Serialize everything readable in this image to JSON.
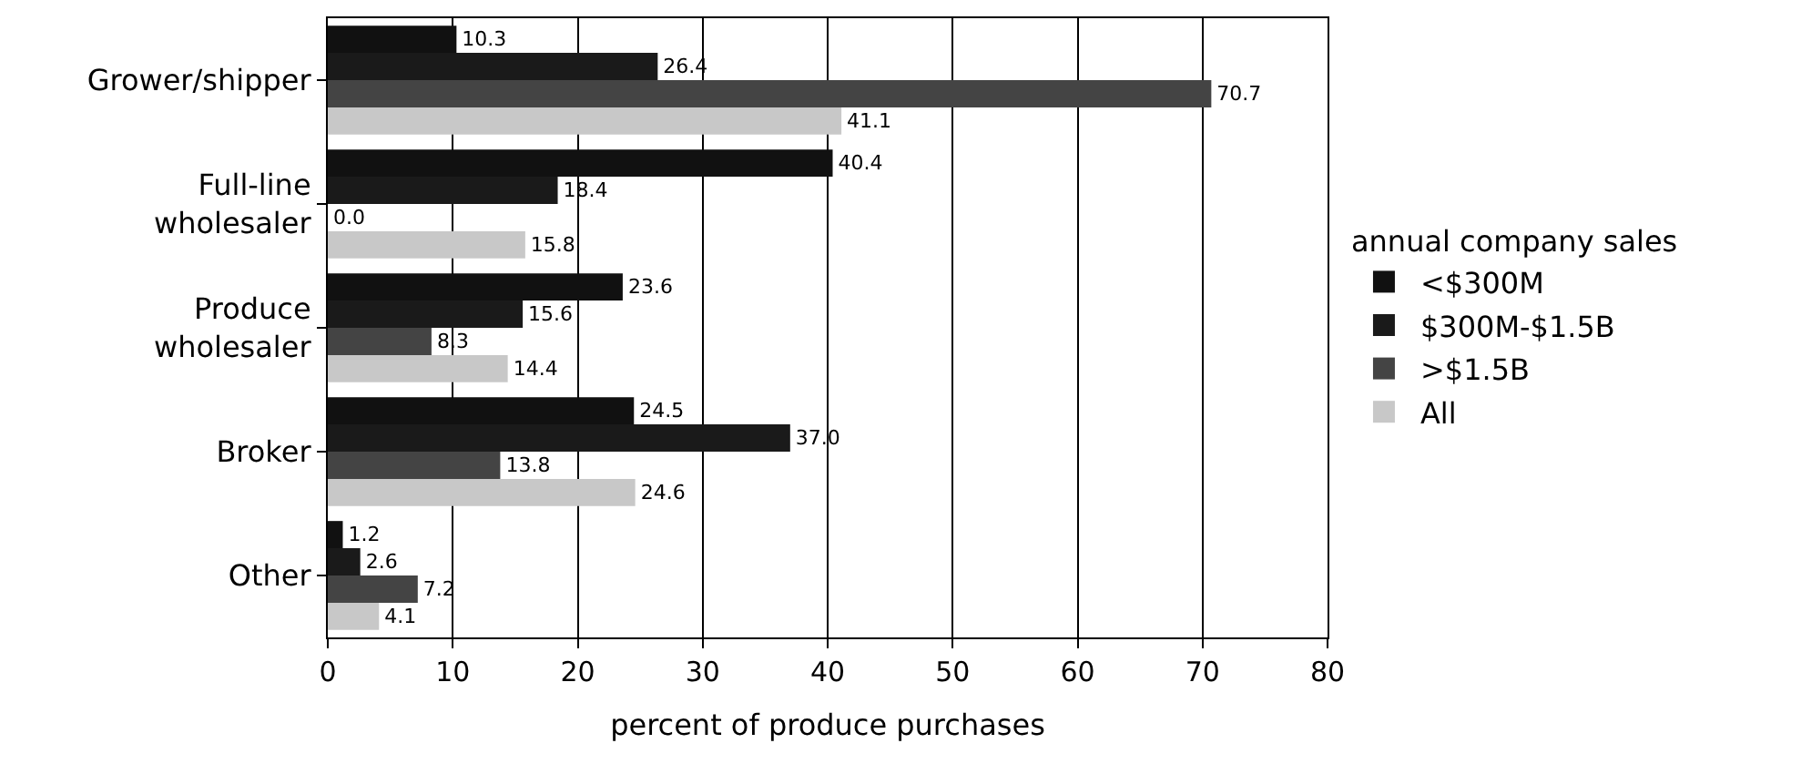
{
  "chart_data": {
    "type": "bar",
    "orientation": "horizontal",
    "xlabel": "percent of produce purchases",
    "legend_title": "annual company sales",
    "categories": [
      "Grower/shipper",
      "Full-line\nwholesaler",
      "Produce\nwholesaler",
      "Broker",
      "Other"
    ],
    "series": [
      {
        "name": "<$300M",
        "color": "#111111",
        "values": [
          10.3,
          40.4,
          23.6,
          24.5,
          1.2
        ],
        "value_labels": [
          "10.3",
          "40.4",
          "23.6",
          "24.5",
          "1.2"
        ]
      },
      {
        "name": "$300M-$1.5B",
        "color": "#1a1a1a",
        "values": [
          26.4,
          18.4,
          15.6,
          37.0,
          2.6
        ],
        "value_labels": [
          "26.4",
          "18.4",
          "15.6",
          "37.0",
          "2.6"
        ]
      },
      {
        "name": ">$1.5B",
        "color": "#444444",
        "values": [
          70.7,
          0.0,
          8.3,
          13.8,
          7.2
        ],
        "value_labels": [
          "70.7",
          "0.0",
          "8.3",
          "13.8",
          "7.2"
        ]
      },
      {
        "name": "All",
        "color": "#c8c8c8",
        "values": [
          41.1,
          15.8,
          14.4,
          24.6,
          4.1
        ],
        "value_labels": [
          "41.1",
          "15.8",
          "14.4",
          "24.6",
          "4.1"
        ]
      }
    ],
    "xlim": [
      0,
      80
    ],
    "xticks": [
      0,
      10,
      20,
      30,
      40,
      50,
      60,
      70,
      80
    ],
    "grid": "x",
    "legend": "right"
  }
}
